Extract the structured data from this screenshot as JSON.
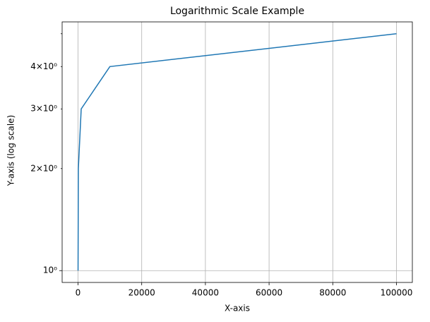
{
  "chart_data": {
    "type": "line",
    "title": "Logarithmic Scale Example",
    "x_label": "X-axis",
    "y_label": "Y-axis (log scale)",
    "x": [
      10,
      100,
      1000,
      10000,
      100000
    ],
    "series": [
      {
        "color": "#1f77b4",
        "values": [
          1,
          2,
          3,
          4,
          5
        ]
      }
    ],
    "xlim": [
      -4990,
      104990
    ],
    "xticks": [
      0,
      20000,
      40000,
      60000,
      80000,
      100000
    ],
    "ylim": [
      0.9227,
      5.419
    ],
    "y_scale": "log",
    "yticks": [
      {
        "value": 1,
        "label": "10⁰"
      },
      {
        "value": 2,
        "label": "2×10⁰"
      },
      {
        "value": 3,
        "label": "3×10⁰"
      },
      {
        "value": 4,
        "label": "4×10⁰"
      }
    ],
    "y_minor_ticks": [
      5
    ],
    "grid": true
  }
}
